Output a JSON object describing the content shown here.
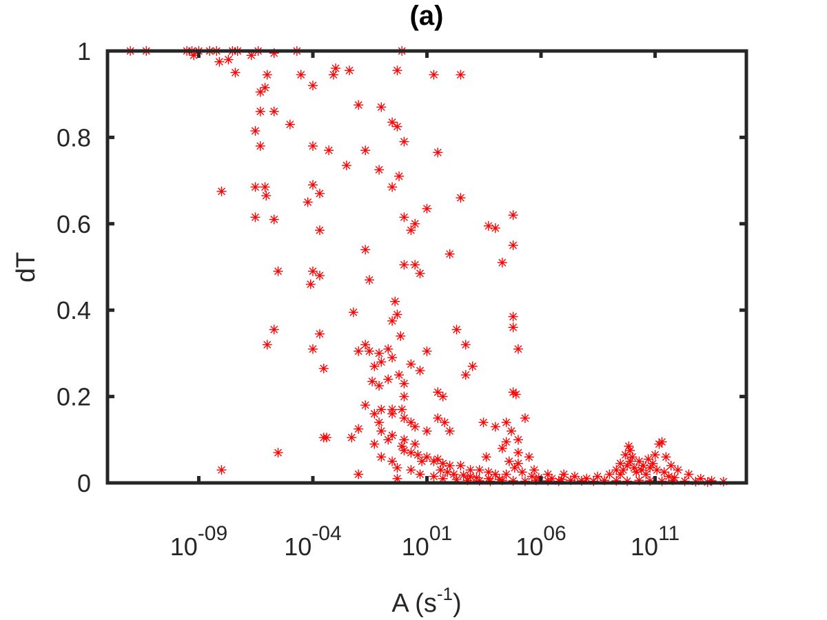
{
  "chart_data": {
    "type": "scatter",
    "title": "(a)",
    "xlabel": "A (s",
    "xlabel_sup": "-1",
    "xlabel_tail": ")",
    "ylabel": "dT",
    "x_scale": "log",
    "xlim": [
      1e-13,
      1000000000000000.0
    ],
    "ylim": [
      0,
      1
    ],
    "x_ticks": [
      {
        "base": "10",
        "exp": "-09",
        "value": 1e-09
      },
      {
        "base": "10",
        "exp": "-04",
        "value": 0.0001
      },
      {
        "base": "10",
        "exp": "01",
        "value": 10
      },
      {
        "base": "10",
        "exp": "06",
        "value": 1000000.0
      },
      {
        "base": "10",
        "exp": "11",
        "value": 100000000000.0
      }
    ],
    "y_ticks": [
      {
        "label": "0",
        "value": 0
      },
      {
        "label": "0.2",
        "value": 0.2
      },
      {
        "label": "0.4",
        "value": 0.4
      },
      {
        "label": "0.6",
        "value": 0.6
      },
      {
        "label": "0.8",
        "value": 0.8
      },
      {
        "label": "1",
        "value": 1
      }
    ],
    "grid": false,
    "box": true,
    "marker": "asterisk",
    "marker_color": "#ff0000",
    "series": [
      {
        "points": [
          [
            1e-12,
            1
          ],
          [
            5e-12,
            1
          ],
          [
            3e-10,
            1
          ],
          [
            5e-10,
            1
          ],
          [
            1e-09,
            1
          ],
          [
            3e-09,
            1
          ],
          [
            6e-09,
            1
          ],
          [
            3e-08,
            1
          ],
          [
            5e-08,
            1
          ],
          [
            4e-07,
            1
          ],
          [
            2e-05,
            1
          ],
          [
            0.8,
            1
          ],
          [
            2e-08,
            0.98
          ],
          [
            2e-07,
            0.99
          ],
          [
            8e-09,
            0.975
          ],
          [
            2e-06,
            0.995
          ],
          [
            6e-10,
            0.99
          ],
          [
            4e-08,
            0.95
          ],
          [
            1e-06,
            0.945
          ],
          [
            3e-05,
            0.945
          ],
          [
            0.0008,
            0.945
          ],
          [
            0.004,
            0.955
          ],
          [
            0.001,
            0.96
          ],
          [
            0.0001,
            0.92
          ],
          [
            0.5,
            0.955
          ],
          [
            20.0,
            0.945
          ],
          [
            300.0,
            0.945
          ],
          [
            5e-07,
            0.905
          ],
          [
            8e-07,
            0.915
          ],
          [
            5e-07,
            0.86
          ],
          [
            2e-06,
            0.86
          ],
          [
            3e-07,
            0.815
          ],
          [
            5e-07,
            0.78
          ],
          [
            0.01,
            0.875
          ],
          [
            0.1,
            0.87
          ],
          [
            1e-05,
            0.83
          ],
          [
            0.3,
            0.835
          ],
          [
            0.5,
            0.825
          ],
          [
            1.0,
            0.79
          ],
          [
            0.0001,
            0.78
          ],
          [
            0.0005,
            0.77
          ],
          [
            0.02,
            0.77
          ],
          [
            30.0,
            0.765
          ],
          [
            0.003,
            0.735
          ],
          [
            0.08,
            0.725
          ],
          [
            0.6,
            0.71
          ],
          [
            1e-08,
            0.675
          ],
          [
            3e-07,
            0.685
          ],
          [
            8e-07,
            0.685
          ],
          [
            0.3,
            0.685
          ],
          [
            9e-07,
            0.665
          ],
          [
            0.0001,
            0.69
          ],
          [
            0.0002,
            0.67
          ],
          [
            6e-05,
            0.65
          ],
          [
            300.0,
            0.66
          ],
          [
            10.0,
            0.635
          ],
          [
            1.0,
            0.615
          ],
          [
            3.0,
            0.6
          ],
          [
            2.0,
            0.585
          ],
          [
            5000.0,
            0.595
          ],
          [
            3e-07,
            0.615
          ],
          [
            2e-06,
            0.61
          ],
          [
            0.0002,
            0.585
          ],
          [
            60000.0,
            0.62
          ],
          [
            60000.0,
            0.55
          ],
          [
            10000.0,
            0.59
          ],
          [
            100.0,
            0.53
          ],
          [
            0.02,
            0.54
          ],
          [
            1.0,
            0.505
          ],
          [
            3.0,
            0.505
          ],
          [
            5.0,
            0.485
          ],
          [
            20000.0,
            0.51
          ],
          [
            3e-06,
            0.49
          ],
          [
            0.0001,
            0.49
          ],
          [
            0.0002,
            0.48
          ],
          [
            8e-05,
            0.46
          ],
          [
            0.03,
            0.47
          ],
          [
            0.4,
            0.42
          ],
          [
            0.5,
            0.39
          ],
          [
            0.3,
            0.375
          ],
          [
            0.006,
            0.395
          ],
          [
            60000.0,
            0.385
          ],
          [
            60000.0,
            0.36
          ],
          [
            1e-06,
            0.32
          ],
          [
            2e-06,
            0.355
          ],
          [
            0.0002,
            0.345
          ],
          [
            0.0001,
            0.31
          ],
          [
            0.0003,
            0.265
          ],
          [
            0.02,
            0.32
          ],
          [
            0.01,
            0.305
          ],
          [
            0.03,
            0.305
          ],
          [
            0.08,
            0.3
          ],
          [
            0.2,
            0.31
          ],
          [
            0.7,
            0.34
          ],
          [
            200.0,
            0.355
          ],
          [
            100000.0,
            0.31
          ],
          [
            10.0,
            0.305
          ],
          [
            2.0,
            0.275
          ],
          [
            500.0,
            0.32
          ],
          [
            1000.0,
            0.27
          ],
          [
            500.0,
            0.25
          ],
          [
            5.0,
            0.26
          ],
          [
            0.1,
            0.28
          ],
          [
            0.05,
            0.27
          ],
          [
            0.3,
            0.29
          ],
          [
            0.6,
            0.25
          ],
          [
            1.0,
            0.23
          ],
          [
            0.2,
            0.24
          ],
          [
            0.04,
            0.235
          ],
          [
            0.08,
            0.225
          ],
          [
            0.005,
            0.105
          ],
          [
            0.0003,
            0.105
          ],
          [
            0.0004,
            0.105
          ],
          [
            3e-06,
            0.07
          ],
          [
            1e-08,
            0.03
          ],
          [
            0.01,
            0.02
          ],
          [
            0.5,
            0.01
          ],
          [
            0.01,
            0.125
          ],
          [
            0.1,
            0.17
          ],
          [
            0.3,
            0.17
          ],
          [
            0.8,
            0.17
          ],
          [
            1.0,
            0.2
          ],
          [
            30.0,
            0.21
          ],
          [
            50.0,
            0.2
          ],
          [
            60000.0,
            0.21
          ],
          [
            80000.0,
            0.205
          ],
          [
            30000.0,
            0.14
          ],
          [
            0.3,
            0.16
          ],
          [
            1.0,
            0.15
          ],
          [
            2.0,
            0.14
          ],
          [
            3.0,
            0.13
          ],
          [
            10.0,
            0.12
          ],
          [
            30.0,
            0.15
          ],
          [
            60.0,
            0.14
          ],
          [
            100.0,
            0.12
          ],
          [
            3000.0,
            0.14
          ],
          [
            10000.0,
            0.13
          ],
          [
            0.3,
            0.11
          ],
          [
            1.0,
            0.1
          ],
          [
            3.0,
            0.09
          ],
          [
            0.8,
            0.085
          ],
          [
            1.0,
            0.075
          ],
          [
            2.0,
            0.07
          ],
          [
            4.0,
            0.065
          ],
          [
            10.0,
            0.06
          ],
          [
            30.0,
            0.055
          ],
          [
            6.0,
            0.05
          ],
          [
            20.0,
            0.05
          ],
          [
            50.0,
            0.045
          ],
          [
            100.0,
            0.04
          ],
          [
            300.0,
            0.04
          ],
          [
            800.0,
            0.03
          ],
          [
            2000.0,
            0.03
          ],
          [
            5000.0,
            0.025
          ],
          [
            10000.0,
            0.02
          ],
          [
            30000.0,
            0.02
          ],
          [
            100000.0,
            0.07
          ],
          [
            300000.0,
            0.06
          ],
          [
            100000.0,
            0.1
          ],
          [
            200000.0,
            0.15
          ],
          [
            50000.0,
            0.12
          ],
          [
            30000.0,
            0.095
          ],
          [
            100000.0,
            0.045
          ],
          [
            500000.0,
            0.03
          ],
          [
            2000000.0,
            0.02
          ],
          [
            10000000.0,
            0.02
          ],
          [
            30000000.0,
            0.015
          ],
          [
            100000000.0,
            0.01
          ],
          [
            300000000.0,
            0.015
          ],
          [
            1000000000.0,
            0.02
          ],
          [
            2000000000.0,
            0.03
          ],
          [
            3000000000.0,
            0.045
          ],
          [
            5000000000.0,
            0.065
          ],
          [
            7000000000.0,
            0.085
          ],
          [
            8000000000.0,
            0.075
          ],
          [
            10000000000.0,
            0.06
          ],
          [
            20000000000.0,
            0.05
          ],
          [
            30000000000.0,
            0.04
          ],
          [
            50000000000.0,
            0.055
          ],
          [
            100000000000.0,
            0.065
          ],
          [
            150000000000.0,
            0.09
          ],
          [
            200000000000.0,
            0.095
          ],
          [
            300000000000.0,
            0.06
          ],
          [
            500000000000.0,
            0.04
          ],
          [
            1000000000000.0,
            0.03
          ],
          [
            3000000000000.0,
            0.02
          ],
          [
            10000000000000.0,
            0.01
          ],
          [
            30000000000000.0,
            0.005
          ],
          [
            100000000000000.0,
            0.003
          ],
          [
            0.02,
            0.18
          ],
          [
            0.05,
            0.16
          ],
          [
            0.08,
            0.14
          ],
          [
            0.1,
            0.12
          ],
          [
            0.2,
            0.1
          ],
          [
            0.05,
            0.09
          ],
          [
            0.1,
            0.06
          ],
          [
            0.3,
            0.05
          ],
          [
            0.5,
            0.035
          ],
          [
            2.0,
            0.03
          ],
          [
            5.0,
            0.02
          ],
          [
            20.0,
            0.015
          ],
          [
            50.0,
            0.01
          ],
          [
            200.0,
            0.008
          ],
          [
            600.0,
            0.006
          ],
          [
            2000.0,
            0.005
          ],
          [
            6000.0,
            0.004
          ],
          [
            20000.0,
            0.006
          ],
          [
            60000.0,
            0.005
          ],
          [
            200000.0,
            0.004
          ],
          [
            600000.0,
            0.006
          ],
          [
            2000000.0,
            0.005
          ],
          [
            6000000.0,
            0.004
          ],
          [
            20000000.0,
            0.006
          ],
          [
            60000000.0,
            0.005
          ],
          [
            200000000.0,
            0.004
          ],
          [
            600000000.0,
            0.006
          ],
          [
            2000000000.0,
            0.005
          ],
          [
            6000000000.0,
            0.004
          ],
          [
            20000000000.0,
            0.006
          ],
          [
            60000000000.0,
            0.005
          ],
          [
            200000000000.0,
            0.004
          ],
          [
            600000000000.0,
            0.006
          ],
          [
            2000000000000.0,
            0.004
          ],
          [
            6000000000000.0,
            0.003
          ],
          [
            20000000000000.0,
            0.002
          ],
          [
            3000000000.0,
            0.02
          ],
          [
            4000000000.0,
            0.03
          ],
          [
            6000000000.0,
            0.04
          ],
          [
            8000000000.0,
            0.05
          ],
          [
            12000000000.0,
            0.035
          ],
          [
            15000000000.0,
            0.025
          ],
          [
            25000000000.0,
            0.03
          ],
          [
            40000000000.0,
            0.02
          ],
          [
            60000000000.0,
            0.035
          ],
          [
            80000000000.0,
            0.045
          ],
          [
            120000000000.0,
            0.03
          ],
          [
            250000000000.0,
            0.025
          ],
          [
            400000000000.0,
            0.015
          ],
          [
            700000000000.0,
            0.012
          ],
          [
            4000.0,
            0.06
          ],
          [
            20000.0,
            0.08
          ],
          [
            40000.0,
            0.05
          ],
          [
            70000.0,
            0.035
          ],
          [
            150000.0,
            0.025
          ],
          [
            400000.0,
            0.015
          ],
          [
            800000.0,
            0.012
          ],
          [
            3000000.0,
            0.01
          ],
          [
            8000000.0,
            0.008
          ],
          [
            40.0,
            0.03
          ],
          [
            80.0,
            0.025
          ],
          [
            150.0,
            0.02
          ],
          [
            400.0,
            0.018
          ],
          [
            800.0,
            0.015
          ],
          [
            1500.0,
            0.012
          ],
          [
            5000.0,
            0.01
          ],
          [
            15000.0,
            0.008
          ]
        ]
      }
    ]
  }
}
